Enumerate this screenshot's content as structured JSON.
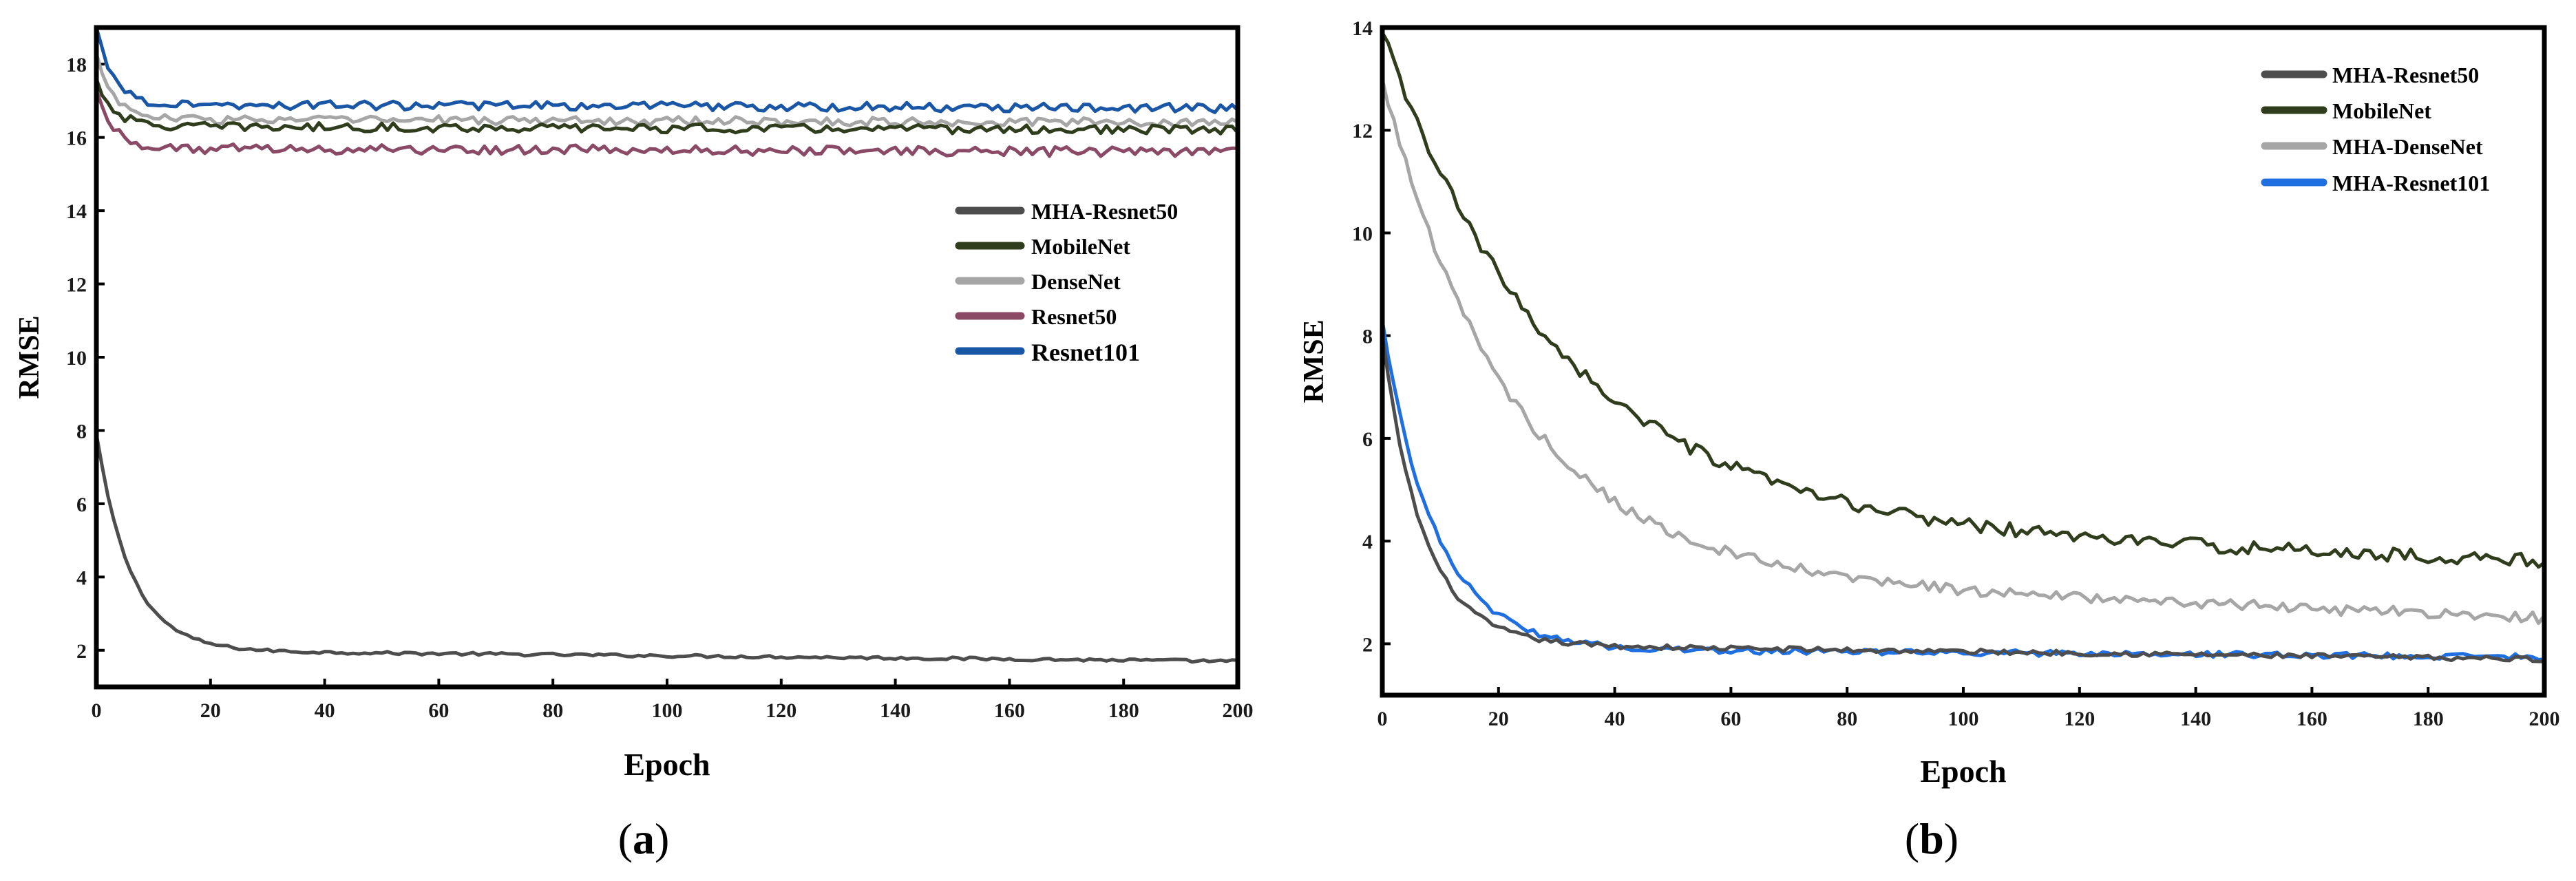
{
  "chart_data": [
    {
      "type": "line",
      "panel_label_open": "(",
      "panel_label_letter": "a",
      "panel_label_close": ")",
      "title": "",
      "xlabel": "Epoch",
      "ylabel": "RMSE",
      "xlim": [
        0,
        200
      ],
      "ylim": [
        1,
        19
      ],
      "xticks": [
        0,
        20,
        40,
        60,
        80,
        100,
        120,
        140,
        160,
        180,
        200
      ],
      "yticks": [
        2,
        4,
        6,
        8,
        10,
        12,
        14,
        16,
        18
      ],
      "legend_position": "center-right",
      "grid": false,
      "series": [
        {
          "name": "MHA-Resnet50",
          "color": "#4d4d4d",
          "start": 7.9,
          "mid": 2.0,
          "end": 1.7,
          "tau": 6,
          "noise": 0.04
        },
        {
          "name": "MobileNet",
          "color": "#2f3d1c",
          "start": 17.6,
          "mid": 16.3,
          "end": 16.2,
          "tau": 3,
          "noise": 0.12
        },
        {
          "name": "DenseNet",
          "color": "#a6a6a6",
          "start": 18.3,
          "mid": 16.5,
          "end": 16.4,
          "tau": 3,
          "noise": 0.12
        },
        {
          "name": "Resnet50",
          "color": "#8a4a66",
          "start": 17.3,
          "mid": 15.7,
          "end": 15.6,
          "tau": 3,
          "noise": 0.13
        },
        {
          "name": "Resnet101",
          "color": "#1a56a6",
          "start": 19.0,
          "mid": 16.9,
          "end": 16.8,
          "tau": 3,
          "noise": 0.12
        }
      ]
    },
    {
      "type": "line",
      "panel_label_open": "(",
      "panel_label_letter": "b",
      "panel_label_close": ")",
      "title": "",
      "xlabel": "Epoch",
      "ylabel": "RMSE",
      "xlim": [
        0,
        200
      ],
      "ylim": [
        1,
        14
      ],
      "xticks": [
        0,
        20,
        40,
        60,
        80,
        100,
        120,
        140,
        160,
        180,
        200
      ],
      "yticks": [
        2,
        4,
        6,
        8,
        10,
        12,
        14
      ],
      "legend_position": "top-right",
      "grid": false,
      "series": [
        {
          "name": "MHA-Resnet50",
          "color": "#4d4d4d",
          "start": 8.0,
          "mid": 2.0,
          "end": 1.7,
          "tau": 7,
          "noise": 0.05
        },
        {
          "name": "MobileNet",
          "color": "#2f3d1c",
          "start": 13.9,
          "mid": 4.4,
          "end": 3.6,
          "tau": 30,
          "noise": 0.13
        },
        {
          "name": "MHA-DenseNet",
          "color": "#a6a6a6",
          "start": 13.0,
          "mid": 3.4,
          "end": 2.5,
          "tau": 22,
          "noise": 0.11
        },
        {
          "name": "MHA-Resnet101",
          "color": "#1f6fe0",
          "start": 8.3,
          "mid": 1.9,
          "end": 1.75,
          "tau": 9,
          "noise": 0.06
        }
      ]
    }
  ]
}
